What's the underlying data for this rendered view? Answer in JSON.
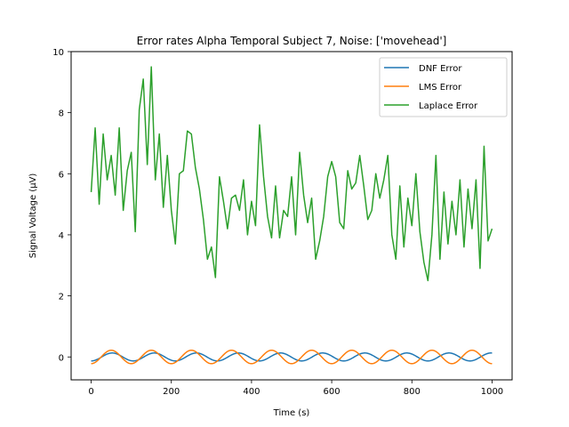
{
  "chart_data": {
    "type": "line",
    "title": "Error rates Alpha Temporal Subject 7, Noise: ['movehead']",
    "xlabel": "Time (s)",
    "ylabel": "Signal Voltage (µV)",
    "xlim": [
      -50,
      1050
    ],
    "ylim": [
      -0.75,
      10
    ],
    "xticks": [
      0,
      200,
      400,
      600,
      800,
      1000
    ],
    "yticks": [
      0,
      2,
      4,
      6,
      8,
      10
    ],
    "grid": false,
    "legend_position": "top-right",
    "series": [
      {
        "name": "DNF Error",
        "color": "#1f77b4",
        "kind": "sine",
        "amplitude": 0.13,
        "period": 105,
        "phase": -1.57,
        "x_start": 0,
        "x_end": 1000
      },
      {
        "name": "LMS Error",
        "color": "#ff7f0e",
        "kind": "sine",
        "amplitude": 0.22,
        "period": 100,
        "phase": -1.57,
        "x_start": 0,
        "x_end": 1000
      },
      {
        "name": "Laplace Error",
        "color": "#2ca02c",
        "kind": "points",
        "x": [
          0,
          10,
          20,
          30,
          40,
          50,
          60,
          70,
          80,
          90,
          100,
          110,
          120,
          130,
          140,
          150,
          160,
          170,
          180,
          190,
          200,
          210,
          220,
          230,
          240,
          250,
          260,
          270,
          280,
          290,
          300,
          310,
          320,
          330,
          340,
          350,
          360,
          370,
          380,
          390,
          400,
          410,
          420,
          430,
          440,
          450,
          460,
          470,
          480,
          490,
          500,
          510,
          520,
          530,
          540,
          550,
          560,
          570,
          580,
          590,
          600,
          610,
          620,
          630,
          640,
          650,
          660,
          670,
          680,
          690,
          700,
          710,
          720,
          730,
          740,
          750,
          760,
          770,
          780,
          790,
          800,
          810,
          820,
          830,
          840,
          850,
          860,
          870,
          880,
          890,
          900,
          910,
          920,
          930,
          940,
          950,
          960,
          970,
          980,
          990,
          1000
        ],
        "y": [
          5.4,
          7.5,
          5.0,
          7.3,
          5.8,
          6.6,
          5.3,
          7.5,
          4.8,
          6.1,
          6.7,
          4.1,
          8.1,
          9.1,
          6.3,
          9.5,
          5.8,
          7.3,
          4.9,
          6.6,
          4.8,
          3.7,
          6.0,
          6.1,
          7.4,
          7.3,
          6.2,
          5.5,
          4.5,
          3.2,
          3.6,
          2.6,
          5.9,
          5.1,
          4.2,
          5.2,
          5.3,
          4.8,
          5.8,
          4.0,
          5.1,
          4.3,
          7.6,
          5.9,
          4.6,
          3.9,
          5.6,
          3.9,
          4.8,
          4.6,
          5.9,
          4.0,
          6.7,
          5.3,
          4.4,
          5.2,
          3.2,
          3.8,
          4.6,
          5.9,
          6.4,
          5.9,
          4.4,
          4.2,
          6.1,
          5.5,
          5.7,
          6.6,
          5.6,
          4.5,
          4.8,
          6.0,
          5.2,
          5.8,
          6.6,
          4.0,
          3.2,
          5.6,
          3.6,
          5.2,
          4.3,
          6.0,
          4.1,
          3.1,
          2.5,
          4.0,
          6.6,
          3.2,
          5.4,
          3.7,
          5.1,
          4.0,
          5.8,
          3.6,
          5.5,
          4.2,
          5.8,
          2.9,
          6.9,
          3.8,
          4.2
        ]
      }
    ]
  }
}
